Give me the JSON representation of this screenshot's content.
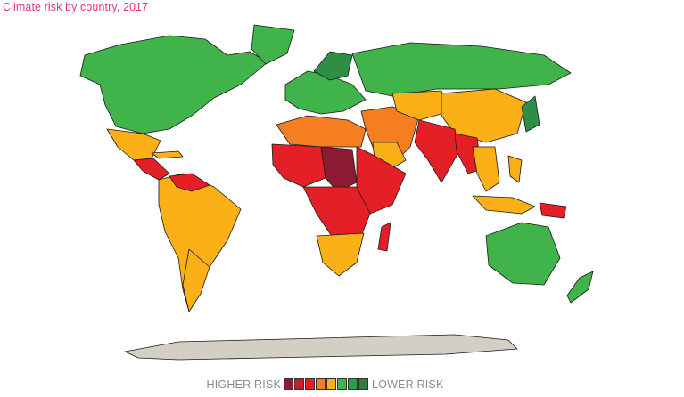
{
  "title": "Climate risk by country, 2017",
  "colors": {
    "title": "#e0348a",
    "ocean": "#ffffff",
    "border": "#1a1a1a",
    "no_data": "#d3cfc5",
    "risk_1": "#8b1a33",
    "risk_2": "#e41f26",
    "risk_3": "#f57e20",
    "risk_4": "#fbb017",
    "risk_5": "#40b34a",
    "risk_6": "#2e8e45"
  },
  "legend": {
    "high_label": "HIGHER RISK",
    "low_label": "LOWER RISK",
    "swatches": [
      "#8b1a33",
      "#c91c2e",
      "#e41f26",
      "#f57e20",
      "#fbb017",
      "#40b34a",
      "#2e9e46",
      "#2e7d3e"
    ]
  },
  "regions": [
    {
      "name": "North America",
      "risk": "lower"
    },
    {
      "name": "Greenland",
      "risk": "lower"
    },
    {
      "name": "Mexico",
      "risk": "medium"
    },
    {
      "name": "Central America",
      "risk": "high"
    },
    {
      "name": "South America",
      "risk": "medium"
    },
    {
      "name": "Europe",
      "risk": "lower"
    },
    {
      "name": "Russia",
      "risk": "lower"
    },
    {
      "name": "Sahel",
      "risk": "highest"
    },
    {
      "name": "Central Africa",
      "risk": "high"
    },
    {
      "name": "Southern Africa",
      "risk": "medium"
    },
    {
      "name": "Middle East",
      "risk": "medium"
    },
    {
      "name": "South Asia",
      "risk": "high"
    },
    {
      "name": "China",
      "risk": "medium"
    },
    {
      "name": "Southeast Asia",
      "risk": "medium"
    },
    {
      "name": "Australia",
      "risk": "lower"
    },
    {
      "name": "Antarctica",
      "risk": "no data"
    }
  ]
}
